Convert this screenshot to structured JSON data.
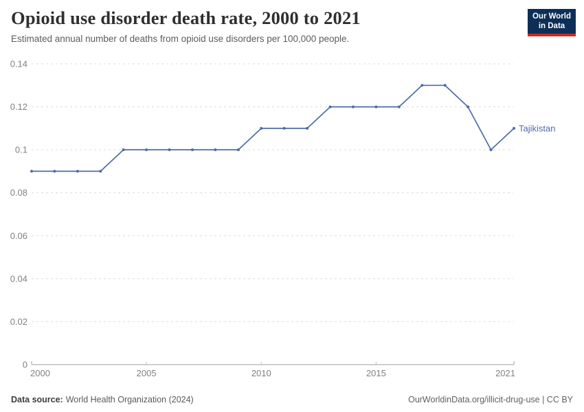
{
  "header": {
    "title": "Opioid use disorder death rate, 2000 to 2021",
    "subtitle": "Estimated annual number of deaths from opioid use disorders per 100,000 people."
  },
  "logo": {
    "line1": "Our World",
    "line2": "in Data",
    "bg_color": "#0D2E57",
    "accent_color": "#CC2A1D",
    "text_color": "#FFFFFF"
  },
  "chart_data": {
    "type": "line",
    "title": "Opioid use disorder death rate, 2000 to 2021",
    "subtitle": "Estimated annual number of deaths from opioid use disorders per 100,000 people.",
    "xlabel": "",
    "ylabel": "",
    "x": [
      2000,
      2001,
      2002,
      2003,
      2004,
      2005,
      2006,
      2007,
      2008,
      2009,
      2010,
      2011,
      2012,
      2013,
      2014,
      2015,
      2016,
      2017,
      2018,
      2019,
      2020,
      2021
    ],
    "series": [
      {
        "name": "Tajikistan",
        "color": "#4C6BA8",
        "values": [
          0.09,
          0.09,
          0.09,
          0.09,
          0.1,
          0.1,
          0.1,
          0.1,
          0.1,
          0.1,
          0.11,
          0.11,
          0.11,
          0.12,
          0.12,
          0.12,
          0.12,
          0.13,
          0.13,
          0.12,
          0.1,
          0.11
        ]
      }
    ],
    "ylim": [
      0,
      0.14
    ],
    "yticks": [
      0,
      0.02,
      0.04,
      0.06,
      0.08,
      0.1,
      0.12,
      0.14
    ],
    "ytick_labels": [
      "0",
      "0.02",
      "0.04",
      "0.06",
      "0.08",
      "0.1",
      "0.12",
      "0.14"
    ],
    "xticks": [
      2000,
      2005,
      2010,
      2015,
      2021
    ],
    "grid": "horizontal-dashed",
    "legend": "series-end-label",
    "colors": {
      "grid": "#DCDCDC",
      "axis": "#9E9E9E",
      "tick": "#BDBDBD",
      "tick_text": "#808080"
    }
  },
  "footer": {
    "source_label": "Data source:",
    "source_value": "World Health Organization (2024)",
    "license": "OurWorldinData.org/illicit-drug-use | CC BY"
  }
}
